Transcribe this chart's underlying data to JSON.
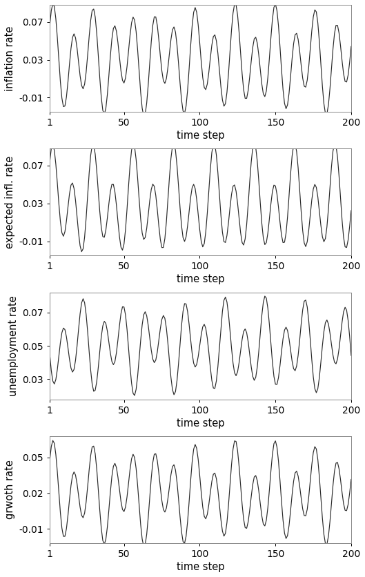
{
  "n_steps": 200,
  "subplots": [
    {
      "ylabel": "inflation rate",
      "xlabel": "time step",
      "yticks": [
        -0.01,
        0.03,
        0.07
      ],
      "ylim": [
        -0.025,
        0.088
      ],
      "xlim": [
        1,
        200
      ],
      "xticks": [
        1,
        50,
        100,
        150,
        200
      ],
      "mean": 0.03,
      "amp1": 0.042,
      "amp2": 0.018,
      "freq1": 0.075,
      "freq2": 0.041,
      "phase1": 0.0,
      "phase2": 1.0
    },
    {
      "ylabel": "expected infl. rate",
      "xlabel": "time step",
      "yticks": [
        -0.01,
        0.03,
        0.07
      ],
      "ylim": [
        -0.025,
        0.088
      ],
      "xlim": [
        1,
        200
      ],
      "xticks": [
        1,
        50,
        100,
        150,
        200
      ],
      "mean": 0.03,
      "amp1": 0.042,
      "amp2": 0.022,
      "freq1": 0.075,
      "freq2": 0.038,
      "phase1": 0.3,
      "phase2": 0.5
    },
    {
      "ylabel": "unemployment rate",
      "xlabel": "time step",
      "yticks": [
        0.03,
        0.05,
        0.07
      ],
      "ylim": [
        0.018,
        0.082
      ],
      "xlim": [
        1,
        200
      ],
      "xticks": [
        1,
        50,
        100,
        150,
        200
      ],
      "mean": 0.05,
      "amp1": 0.02,
      "amp2": 0.01,
      "freq1": 0.075,
      "freq2": 0.041,
      "phase1": 3.14159,
      "phase2": 2.5
    },
    {
      "ylabel": "grwoth rate",
      "xlabel": "time step",
      "yticks": [
        -0.01,
        0.02,
        0.05
      ],
      "ylim": [
        -0.022,
        0.068
      ],
      "xlim": [
        1,
        200
      ],
      "xticks": [
        1,
        50,
        100,
        150,
        200
      ],
      "mean": 0.02,
      "amp1": 0.03,
      "amp2": 0.015,
      "freq1": 0.075,
      "freq2": 0.041,
      "phase1": 0.0,
      "phase2": 1.0
    }
  ],
  "line_color": "#2a2a2a",
  "line_width": 0.85,
  "fig_width": 5.29,
  "fig_height": 8.36,
  "dpi": 100,
  "background_color": "#ffffff",
  "font_size": 10.5,
  "tick_font_size": 10
}
